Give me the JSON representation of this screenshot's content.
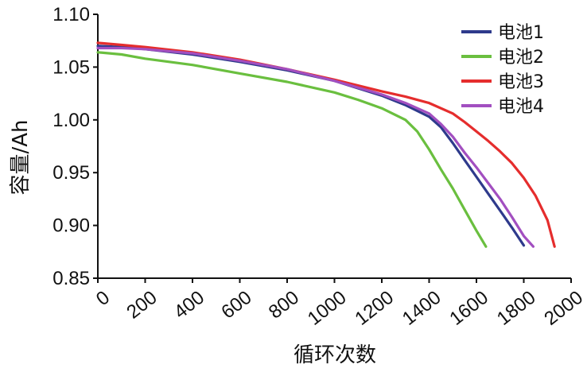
{
  "chart_data": {
    "type": "line",
    "xlabel": "循环次数",
    "ylabel": "容量/Ah",
    "xlim": [
      0,
      2000
    ],
    "ylim": [
      0.85,
      1.1
    ],
    "xticks": [
      0,
      200,
      400,
      600,
      800,
      1000,
      1200,
      1400,
      1600,
      1800,
      2000
    ],
    "yticks": [
      0.85,
      0.9,
      0.95,
      1.0,
      1.05,
      1.1
    ],
    "ytick_labels": [
      "0.85",
      "0.90",
      "0.95",
      "1.00",
      "1.05",
      "1.10"
    ],
    "grid": false,
    "legend_position": "top-right",
    "series": [
      {
        "name": "电池1",
        "color": "#2e3a8c",
        "x": [
          0,
          100,
          200,
          400,
          600,
          800,
          1000,
          1200,
          1300,
          1400,
          1450,
          1500,
          1550,
          1600,
          1650,
          1700,
          1750,
          1800
        ],
        "y": [
          1.07,
          1.069,
          1.067,
          1.062,
          1.055,
          1.047,
          1.037,
          1.023,
          1.014,
          1.003,
          0.993,
          0.978,
          0.962,
          0.946,
          0.93,
          0.914,
          0.898,
          0.881
        ]
      },
      {
        "name": "电池2",
        "color": "#6abf3f",
        "x": [
          0,
          100,
          200,
          400,
          600,
          800,
          1000,
          1100,
          1200,
          1300,
          1350,
          1400,
          1450,
          1500,
          1550,
          1600,
          1640
        ],
        "y": [
          1.064,
          1.062,
          1.058,
          1.052,
          1.044,
          1.036,
          1.026,
          1.019,
          1.011,
          1.0,
          0.989,
          0.972,
          0.953,
          0.935,
          0.915,
          0.895,
          0.88
        ]
      },
      {
        "name": "电池3",
        "color": "#e52d2d",
        "x": [
          0,
          100,
          200,
          400,
          600,
          800,
          1000,
          1200,
          1300,
          1400,
          1500,
          1550,
          1600,
          1650,
          1700,
          1750,
          1800,
          1850,
          1900,
          1930
        ],
        "y": [
          1.073,
          1.071,
          1.069,
          1.064,
          1.057,
          1.048,
          1.038,
          1.027,
          1.022,
          1.016,
          1.006,
          0.998,
          0.989,
          0.98,
          0.97,
          0.959,
          0.945,
          0.928,
          0.905,
          0.88
        ]
      },
      {
        "name": "电池4",
        "color": "#a24fc0",
        "x": [
          0,
          100,
          200,
          400,
          600,
          800,
          1000,
          1200,
          1300,
          1400,
          1450,
          1500,
          1550,
          1600,
          1650,
          1700,
          1750,
          1800,
          1840
        ],
        "y": [
          1.068,
          1.068,
          1.067,
          1.063,
          1.056,
          1.048,
          1.037,
          1.024,
          1.016,
          1.006,
          0.996,
          0.984,
          0.969,
          0.955,
          0.94,
          0.925,
          0.908,
          0.89,
          0.88
        ]
      }
    ]
  }
}
